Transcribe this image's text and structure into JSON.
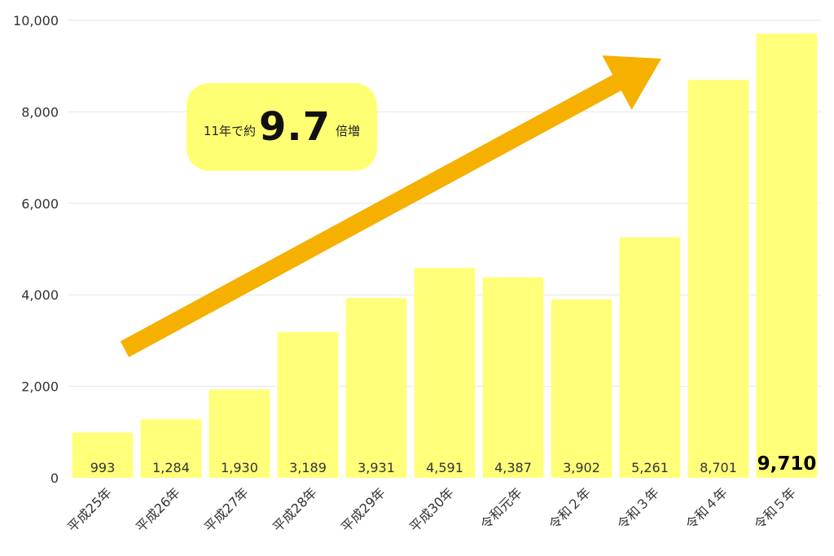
{
  "chart_data": {
    "type": "bar",
    "title": "",
    "xlabel": "",
    "ylabel": "",
    "categories": [
      "平成25年",
      "平成26年",
      "平成27年",
      "平成28年",
      "平成29年",
      "平成30年",
      "令和元年",
      "令和２年",
      "令和３年",
      "令和４年",
      "令和５年"
    ],
    "values": [
      993,
      1284,
      1930,
      3189,
      3931,
      4591,
      4387,
      3902,
      5261,
      8701,
      9710
    ],
    "value_labels": [
      "993",
      "1,284",
      "1,930",
      "3,189",
      "3,931",
      "4,591",
      "4,387",
      "3,902",
      "5,261",
      "8,701",
      "9,710"
    ],
    "highlight_index": 10,
    "ylim": [
      0,
      10000
    ],
    "yticks": [
      0,
      2000,
      4000,
      6000,
      8000,
      10000
    ],
    "ytick_labels": [
      "0",
      "2,000",
      "4,000",
      "6,000",
      "8,000",
      "10,000"
    ],
    "grid": true,
    "bar_color": "#ffff7a",
    "grid_color": "#e6e6e6",
    "arrow_color": "#f5b000",
    "annotation": {
      "prefix": "11年で約",
      "value": "9.7",
      "suffix": "倍増",
      "background": "#ffff73"
    }
  }
}
